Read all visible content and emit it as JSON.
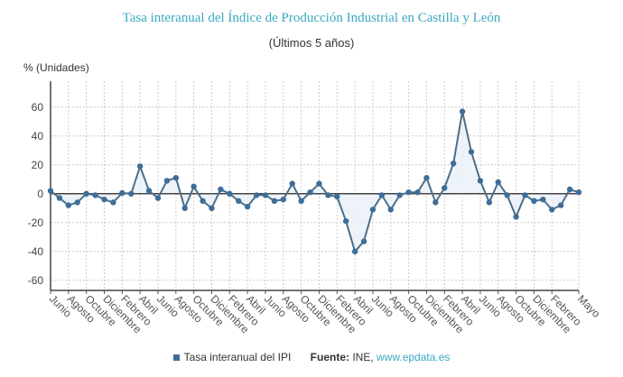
{
  "chart_data": {
    "type": "line",
    "title": "Tasa interanual del Índice de Producción Industrial en Castilla y León",
    "subtitle": "(Últimos 5 años)",
    "ylabel": "% (Unidades)",
    "ylim": [
      -67,
      78
    ],
    "yticks": [
      60,
      40,
      20,
      0,
      -20,
      -40,
      -60
    ],
    "grid": true,
    "legend_position": "bottom",
    "x_labels": [
      "Junio",
      "Agosto",
      "Octubre",
      "Diciembre",
      "Febrero",
      "Abril",
      "Junio",
      "Agosto",
      "Octubre",
      "Diciembre",
      "Febrero",
      "Abril",
      "Junio",
      "Agosto",
      "Octubre",
      "Diciembre",
      "Febrero",
      "Abril",
      "Junio",
      "Agosto",
      "Octubre",
      "Diciembre",
      "Febrero",
      "Abril",
      "Junio",
      "Agosto",
      "Octubre",
      "Diciembre",
      "Febrero",
      "Mayo"
    ],
    "series": [
      {
        "name": "Tasa interanual del IPI",
        "color": "#3d6e99",
        "values": [
          2,
          -3,
          -8,
          -6,
          0,
          -1,
          -4,
          -6,
          0.5,
          0,
          19,
          2,
          -3,
          9,
          11,
          -10,
          5,
          -5,
          -10,
          3,
          0,
          -5,
          -9,
          -1,
          -1,
          -5,
          -4,
          7,
          -5,
          1,
          7,
          -1,
          -2,
          -19,
          -40,
          -33,
          -11,
          -1,
          -11,
          -1,
          1,
          1,
          11,
          -6,
          4,
          21,
          57,
          29,
          9,
          -6,
          8,
          -1,
          -16,
          -1,
          -5,
          -4,
          -11,
          -8,
          3,
          1
        ]
      }
    ]
  },
  "legend": {
    "series_label": "Tasa interanual del IPI",
    "source_label": "Fuente:",
    "source_text": "INE,",
    "source_link": "www.epdata.es"
  }
}
